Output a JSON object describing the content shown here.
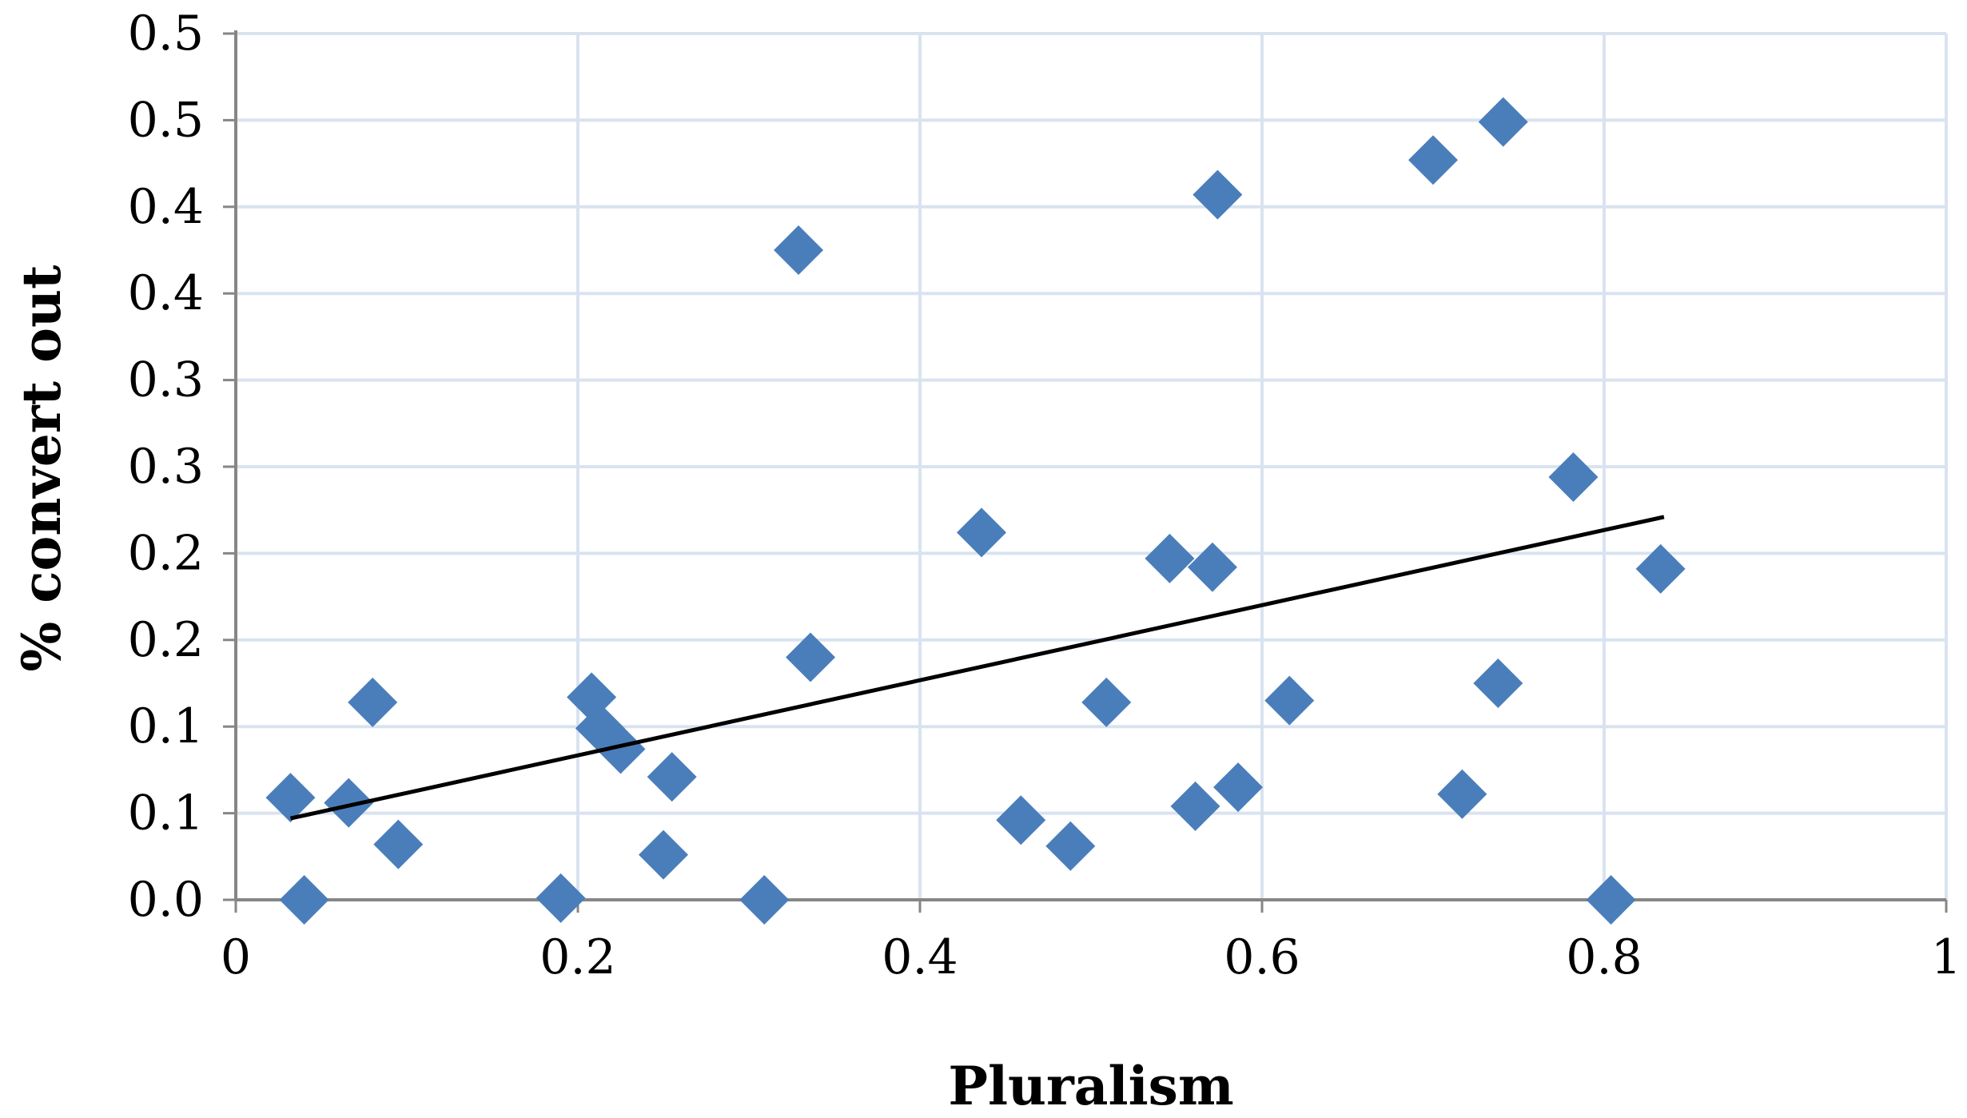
{
  "chart_data": {
    "type": "scatter",
    "title": "",
    "xlabel": "Pluralism",
    "ylabel": "% convert out",
    "xlim": [
      0,
      1
    ],
    "ylim": [
      0,
      0.5
    ],
    "x_ticks": [
      "0",
      "0.2",
      "0.4",
      "0.6",
      "0.8",
      "1"
    ],
    "x_tick_values": [
      0,
      0.2,
      0.4,
      0.6,
      0.8,
      1.0
    ],
    "y_ticks": [
      "0.0",
      "0.1",
      "0.1",
      "0.2",
      "0.2",
      "0.3",
      "0.3",
      "0.4",
      "0.4",
      "0.5",
      "0.5"
    ],
    "y_tick_values": [
      0,
      0.05,
      0.1,
      0.15,
      0.2,
      0.25,
      0.3,
      0.35,
      0.4,
      0.45,
      0.5
    ],
    "grid": true,
    "marker": "diamond",
    "marker_color": "#4a7ebb",
    "trendline_color": "#000000",
    "gridline_color": "#d9e3f0",
    "axis_color": "#868686",
    "series": [
      {
        "points": [
          {
            "x": 0.032,
            "y": 0.059
          },
          {
            "x": 0.04,
            "y": 0.0
          },
          {
            "x": 0.066,
            "y": 0.056
          },
          {
            "x": 0.08,
            "y": 0.114
          },
          {
            "x": 0.095,
            "y": 0.032
          },
          {
            "x": 0.19,
            "y": 0.001
          },
          {
            "x": 0.208,
            "y": 0.117
          },
          {
            "x": 0.213,
            "y": 0.099
          },
          {
            "x": 0.225,
            "y": 0.087
          },
          {
            "x": 0.25,
            "y": 0.026
          },
          {
            "x": 0.255,
            "y": 0.071
          },
          {
            "x": 0.309,
            "y": 0.0
          },
          {
            "x": 0.329,
            "y": 0.375
          },
          {
            "x": 0.336,
            "y": 0.14
          },
          {
            "x": 0.436,
            "y": 0.212
          },
          {
            "x": 0.459,
            "y": 0.046
          },
          {
            "x": 0.488,
            "y": 0.031
          },
          {
            "x": 0.509,
            "y": 0.114
          },
          {
            "x": 0.546,
            "y": 0.197
          },
          {
            "x": 0.561,
            "y": 0.054
          },
          {
            "x": 0.571,
            "y": 0.192
          },
          {
            "x": 0.574,
            "y": 0.407
          },
          {
            "x": 0.586,
            "y": 0.065
          },
          {
            "x": 0.616,
            "y": 0.115
          },
          {
            "x": 0.7,
            "y": 0.427
          },
          {
            "x": 0.717,
            "y": 0.061
          },
          {
            "x": 0.738,
            "y": 0.125
          },
          {
            "x": 0.741,
            "y": 0.449
          },
          {
            "x": 0.782,
            "y": 0.244
          },
          {
            "x": 0.804,
            "y": 0.0
          },
          {
            "x": 0.833,
            "y": 0.191
          }
        ]
      }
    ],
    "trendline": {
      "x": [
        0.032,
        0.835
      ],
      "y": [
        0.047,
        0.221
      ]
    }
  }
}
